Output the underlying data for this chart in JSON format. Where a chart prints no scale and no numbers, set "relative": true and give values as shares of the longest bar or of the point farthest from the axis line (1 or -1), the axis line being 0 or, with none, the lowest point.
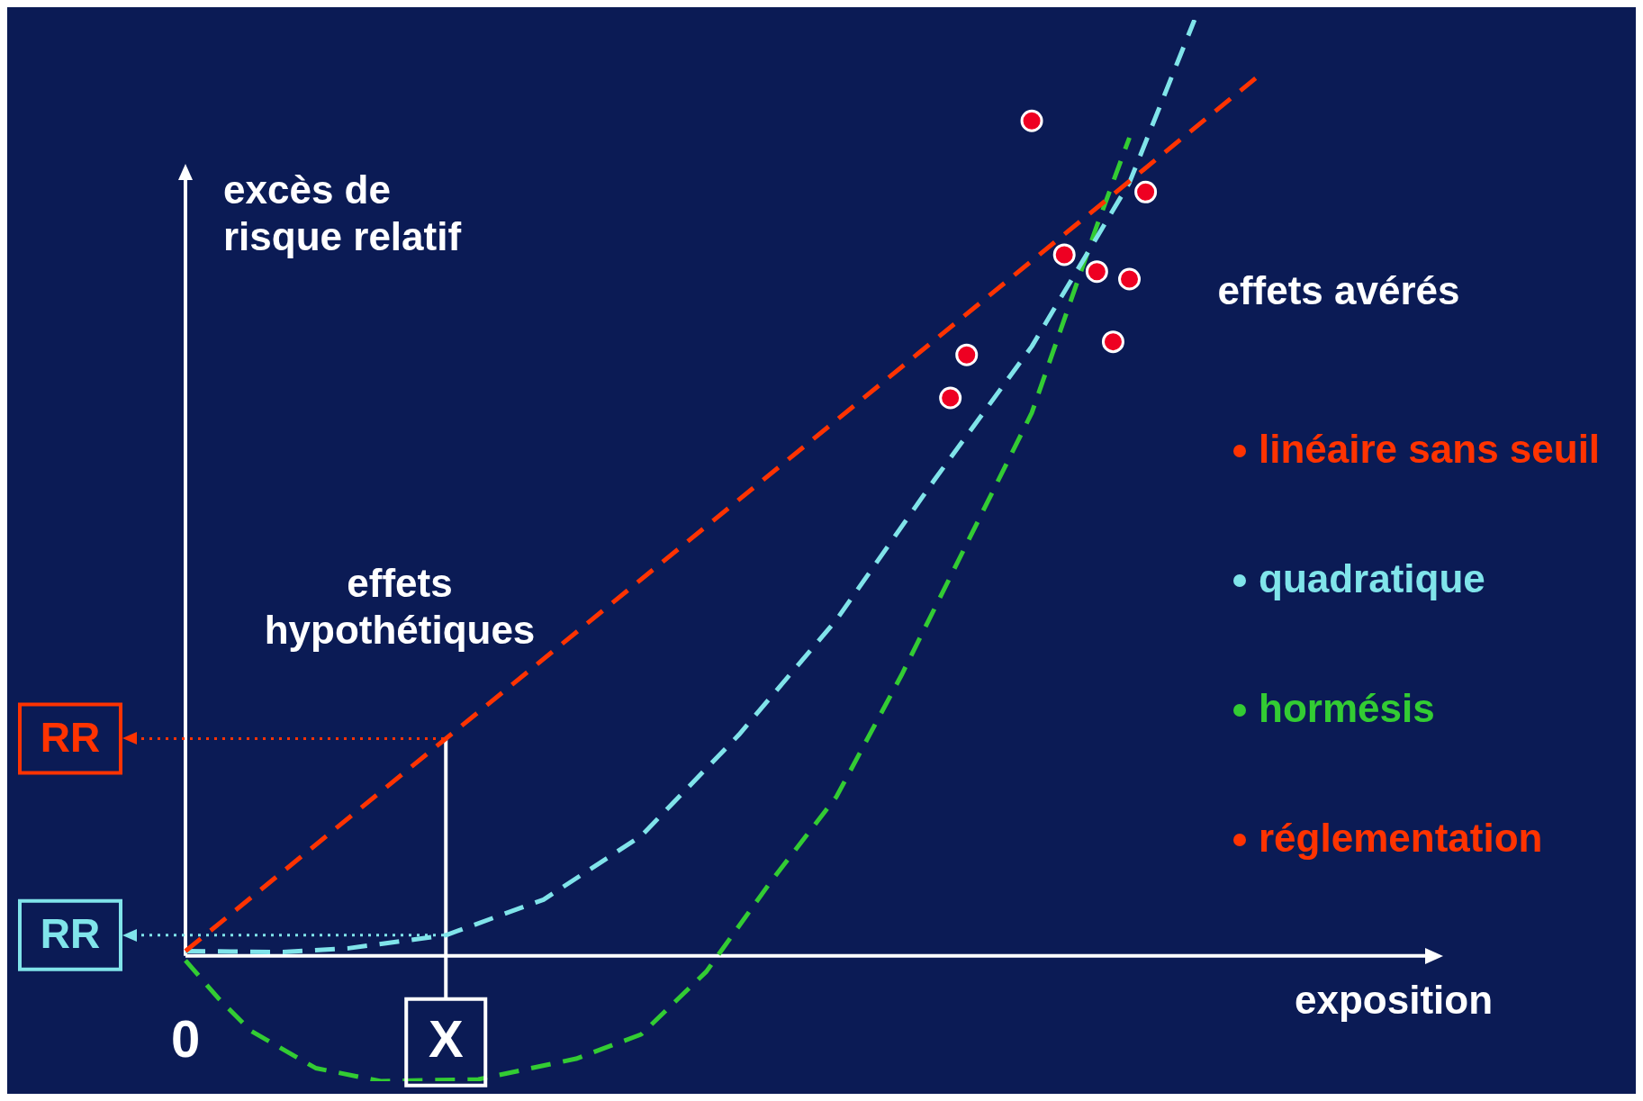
{
  "chart_data": {
    "type": "line",
    "relative": true,
    "xlabel": "exposition",
    "ylabel": "excès de risque relatif",
    "line_style": "dashed",
    "legend": "right",
    "categories": [
      "0",
      null,
      null,
      null,
      null,
      null,
      null,
      null,
      null,
      null,
      null,
      null,
      null,
      null,
      null,
      null,
      "X",
      null,
      null,
      null,
      null,
      null,
      null,
      null,
      null,
      null,
      null,
      null,
      null,
      null,
      null,
      null,
      null,
      null,
      null,
      null,
      null,
      null,
      null,
      null,
      null,
      null,
      null,
      null,
      null,
      null,
      null,
      null,
      null,
      null,
      null,
      null,
      null,
      null,
      null,
      null,
      null,
      null,
      null,
      null,
      null,
      null,
      null,
      null,
      null,
      null,
      null,
      null,
      null,
      null,
      null,
      null,
      null,
      null,
      null,
      null,
      null,
      null
    ],
    "series": [
      {
        "name": "linéaire sans seuil",
        "color": "#ff3300",
        "values": [
          0.005,
          null,
          null,
          null,
          null,
          null,
          null,
          null,
          null,
          null,
          null,
          null,
          null,
          null,
          null,
          null,
          0.232,
          null,
          null,
          null,
          null,
          null,
          null,
          null,
          null,
          null,
          null,
          null,
          null,
          null,
          null,
          null,
          null,
          null,
          null,
          null,
          null,
          null,
          null,
          null,
          null,
          null,
          null,
          null,
          null,
          null,
          null,
          null,
          null,
          null,
          null,
          null,
          null,
          null,
          null,
          null,
          null,
          null,
          null,
          null,
          null,
          null,
          null,
          null,
          null,
          null,
          0.941,
          null,
          null,
          null,
          null,
          null,
          null,
          null,
          null,
          null,
          null,
          null
        ]
      },
      {
        "name": "quadratique",
        "color": "#80e4ea",
        "values": [
          0.005,
          null,
          null,
          null,
          null,
          null,
          0.004,
          null,
          null,
          null,
          0.008,
          null,
          null,
          null,
          null,
          null,
          0.022,
          null,
          null,
          null,
          null,
          null,
          0.06,
          null,
          null,
          null,
          null,
          null,
          0.128,
          null,
          null,
          null,
          null,
          null,
          0.236,
          null,
          null,
          null,
          null,
          null,
          0.359,
          null,
          null,
          null,
          null,
          null,
          0.508,
          null,
          null,
          null,
          null,
          null,
          0.651,
          null,
          null,
          null,
          null,
          null,
          0.826,
          null,
          null,
          null,
          1.0,
          null,
          null,
          null,
          null,
          null,
          null,
          null,
          null,
          null,
          null,
          null,
          null,
          null,
          null,
          null
        ]
      },
      {
        "name": "hormésis",
        "color": "#33cc33",
        "values": [
          -0.005,
          null,
          -0.045,
          null,
          -0.08,
          null,
          null,
          null,
          -0.12,
          null,
          null,
          null,
          -0.134,
          null,
          null,
          null,
          null,
          null,
          -0.132,
          null,
          null,
          null,
          null,
          null,
          -0.11,
          null,
          null,
          null,
          -0.084,
          null,
          null,
          null,
          -0.017,
          null,
          null,
          null,
          0.08,
          null,
          null,
          null,
          0.17,
          null,
          null,
          null,
          0.3,
          null,
          null,
          null,
          0.44,
          null,
          null,
          null,
          0.58,
          null,
          null,
          null,
          0.78,
          null,
          0.874,
          null,
          null,
          null,
          null,
          null,
          null,
          null,
          null,
          null,
          null,
          null,
          null,
          null,
          null,
          null,
          null,
          null,
          null,
          null
        ]
      },
      {
        "type": "scatter",
        "marker": "circle",
        "color": "#ee0022",
        "values": [
          null,
          null,
          null,
          null,
          null,
          null,
          null,
          null,
          null,
          null,
          null,
          null,
          null,
          null,
          null,
          null,
          null,
          null,
          null,
          null,
          null,
          null,
          null,
          null,
          null,
          null,
          null,
          null,
          null,
          null,
          null,
          null,
          null,
          null,
          null,
          null,
          null,
          null,
          null,
          null,
          null,
          null,
          null,
          null,
          null,
          null,
          null,
          0.596,
          0.642,
          null,
          null,
          null,
          0.892,
          null,
          0.749,
          null,
          0.731,
          0.656,
          0.723,
          0.816,
          null,
          null,
          null,
          null,
          null,
          null,
          null,
          null,
          null,
          null,
          null,
          null,
          null,
          null,
          null,
          null,
          null,
          null
        ]
      }
    ],
    "ref_lines": [
      {
        "axis": "y",
        "value": 0.232,
        "label": "RR",
        "color": "#ff3300",
        "line_style": "dotted"
      },
      {
        "axis": "y",
        "value": 0.022,
        "label": "RR",
        "color": "#80e4ea",
        "line_style": "dotted"
      },
      {
        "axis": "x",
        "value": "X",
        "color": "#ffffff"
      }
    ],
    "annotations": [
      "effets avérés",
      "effets hypothétiques",
      "réglementation"
    ]
  }
}
